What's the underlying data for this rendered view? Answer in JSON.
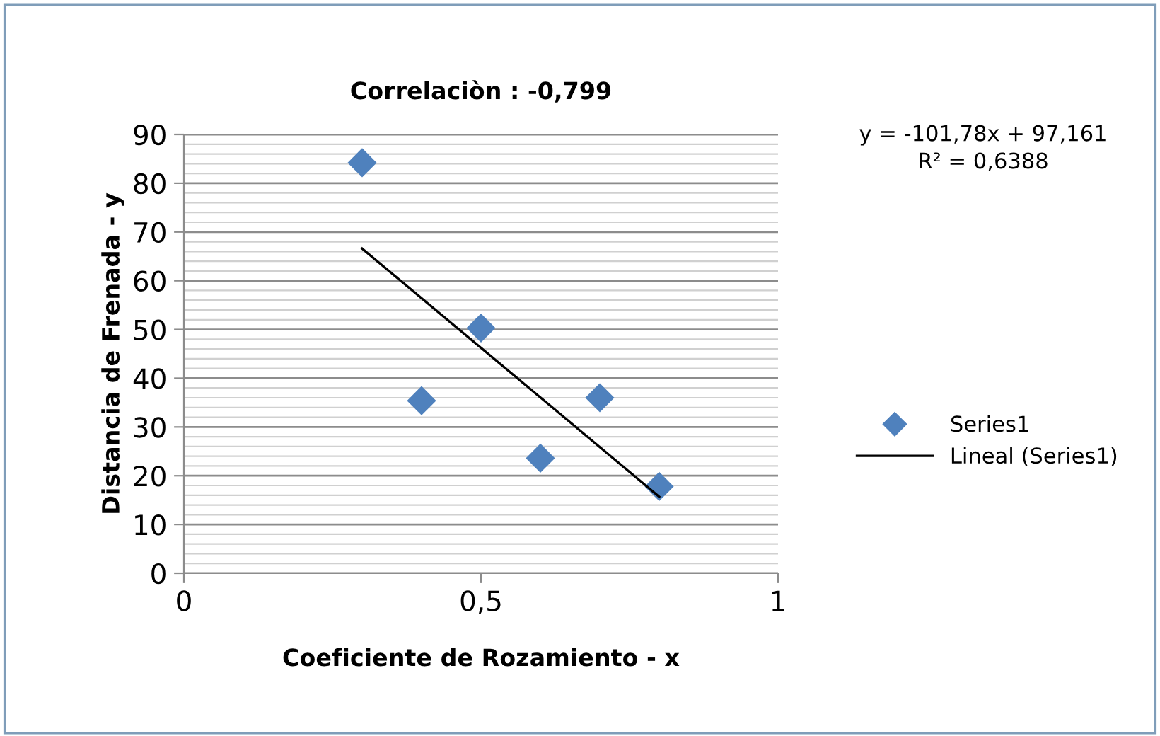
{
  "chart_data": {
    "type": "scatter",
    "title": "Correlaciòn : -0,799",
    "xlabel": "Coeficiente de Rozamiento - x",
    "ylabel": "Distancia de Frenada - y",
    "series": [
      {
        "name": "Series1",
        "color": "#4f81bd",
        "marker": "diamond",
        "x": [
          0.3,
          0.4,
          0.5,
          0.6,
          0.7,
          0.8
        ],
        "values": [
          84.2,
          35.4,
          50.3,
          23.6,
          36.0,
          17.8
        ]
      },
      {
        "name": "Lineal (Series1)",
        "type": "line",
        "color": "#000000",
        "marker": "none",
        "line_style": "solid",
        "x": [
          0.3,
          0.8
        ],
        "values": [
          66.6,
          15.7
        ]
      }
    ],
    "annotations": [
      "y = -101,78x + 97,161\nR² = 0,6388"
    ],
    "xlim": [
      0,
      1
    ],
    "xticks": [
      0,
      {
        "value": 0.5,
        "label": "0,5"
      },
      1
    ],
    "ylim": [
      0,
      90
    ],
    "yticks": [
      0,
      10,
      20,
      30,
      40,
      50,
      60,
      70,
      80,
      90
    ],
    "grid": "y",
    "legend": "right"
  }
}
